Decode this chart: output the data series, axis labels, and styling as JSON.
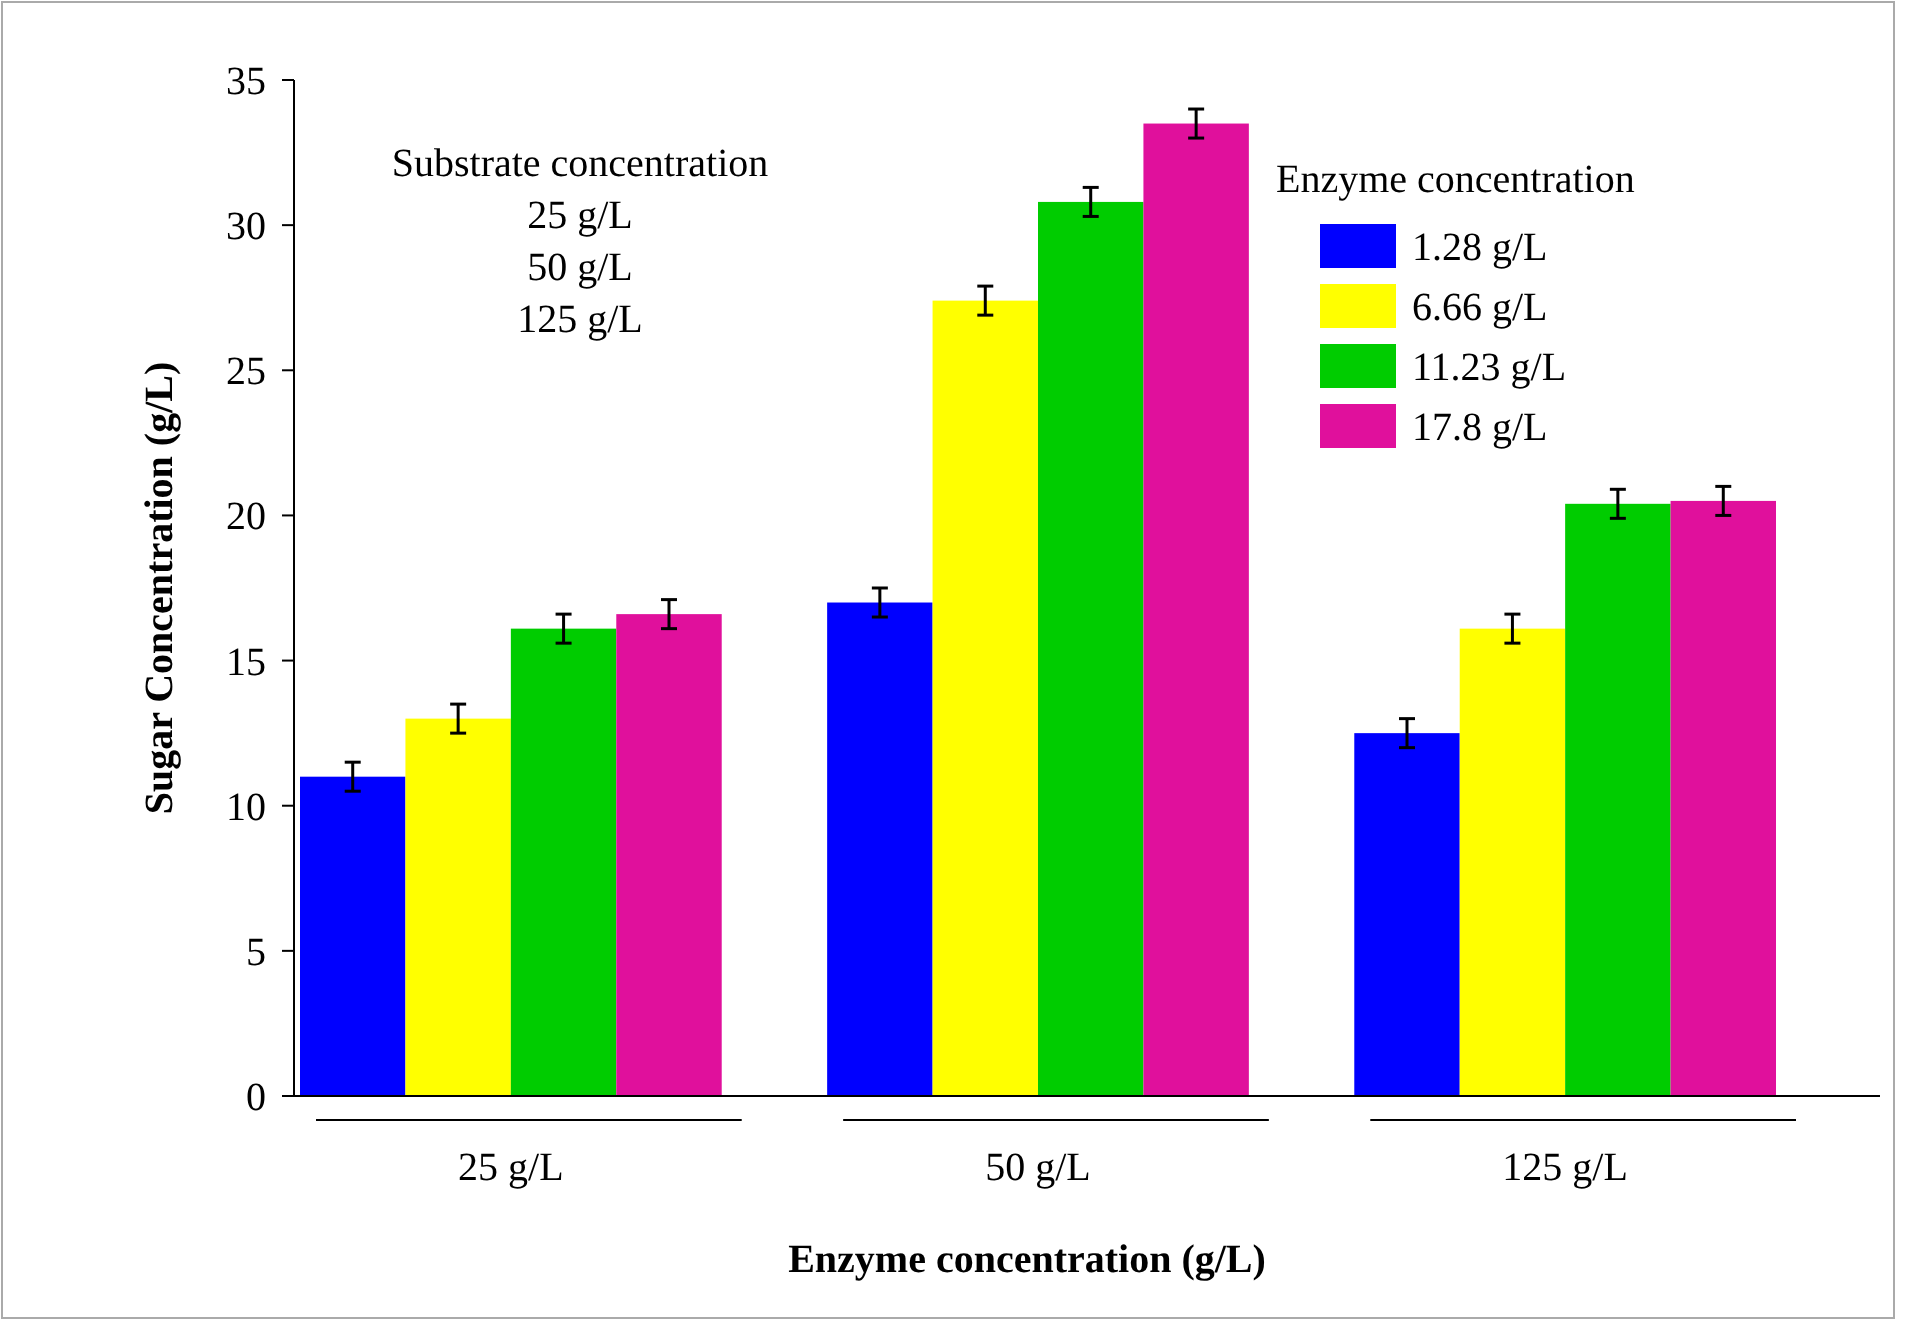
{
  "chart_data": {
    "type": "bar",
    "xlabel": "Enzyme concentration (g/L)",
    "ylabel": "Sugar Concentration (g/L)",
    "legend_title": "Enzyme concentration",
    "annotations": [
      "Substrate concentration",
      "25 g/L",
      "50 g/L",
      "125 g/L"
    ],
    "categories": [
      "25 g/L",
      "50 g/L",
      "125 g/L"
    ],
    "series": [
      {
        "name": "1.28 g/L",
        "color": "#0000ff",
        "values": [
          11.0,
          17.0,
          12.5
        ],
        "errors": [
          0.5,
          0.5,
          0.5
        ]
      },
      {
        "name": "6.66 g/L",
        "color": "#ffff00",
        "values": [
          13.0,
          27.4,
          16.1
        ],
        "errors": [
          0.5,
          0.5,
          0.5
        ]
      },
      {
        "name": "11.23 g/L",
        "color": "#00cc00",
        "values": [
          16.1,
          30.8,
          20.4
        ],
        "errors": [
          0.5,
          0.5,
          0.5
        ]
      },
      {
        "name": "17.8 g/L",
        "color": "#e0109c",
        "values": [
          16.6,
          33.5,
          20.5
        ],
        "errors": [
          0.5,
          0.5,
          0.5
        ]
      }
    ],
    "ylim": [
      0,
      35
    ],
    "yticks": [
      0,
      5,
      10,
      15,
      20,
      25,
      30,
      35
    ],
    "grid": false,
    "legend": "top right"
  }
}
